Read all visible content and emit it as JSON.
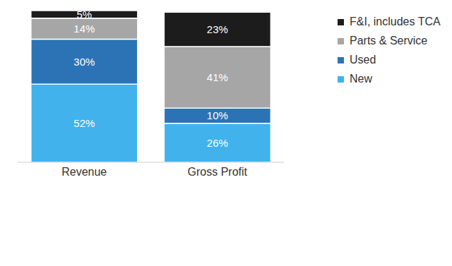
{
  "chart_data": {
    "type": "bar",
    "categories": [
      "Revenue",
      "Gross Profit"
    ],
    "stacked": true,
    "data_labels": true,
    "tick_labels": "x",
    "legend": "upper right",
    "ylim": [
      0,
      101
    ],
    "series": [
      {
        "name": "New",
        "color": "#41b2ec",
        "values": [
          52,
          26
        ],
        "value_labels": [
          "52%",
          "26%"
        ]
      },
      {
        "name": "Used",
        "color": "#2c73b6",
        "values": [
          30,
          10
        ],
        "value_labels": [
          "30%",
          "10%"
        ]
      },
      {
        "name": "Parts & Service",
        "color": "#a6a6a6",
        "values": [
          14,
          41
        ],
        "value_labels": [
          "14%",
          "41%"
        ]
      },
      {
        "name": "F&I, includes TCA",
        "color": "#1c1c1c",
        "values": [
          5,
          23
        ],
        "value_labels": [
          "5%",
          "23%"
        ]
      }
    ]
  }
}
